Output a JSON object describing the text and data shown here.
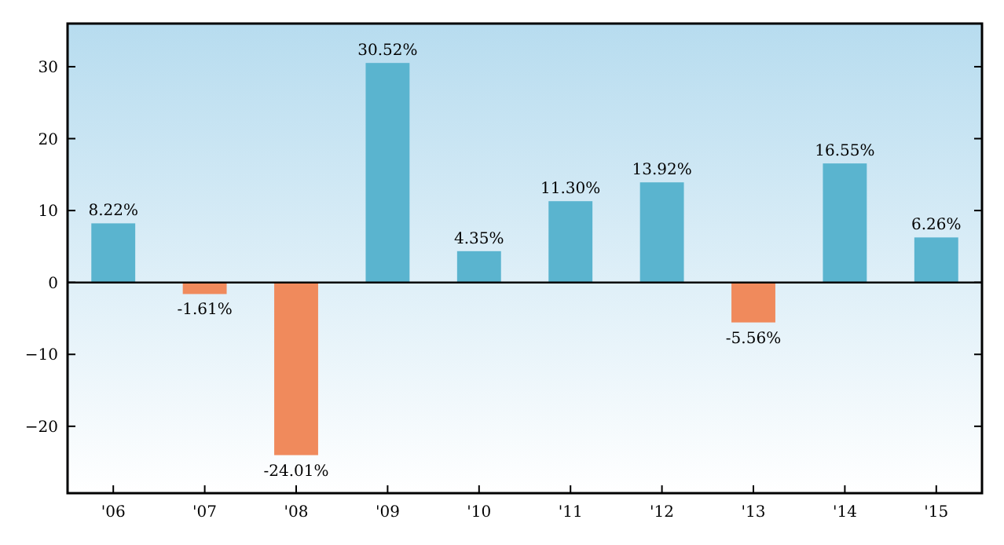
{
  "chart_data": {
    "type": "bar",
    "categories": [
      "'06",
      "'07",
      "'08",
      "'09",
      "'10",
      "'11",
      "'12",
      "'13",
      "'14",
      "'15"
    ],
    "values": [
      8.22,
      -1.61,
      -24.01,
      30.52,
      4.35,
      11.3,
      13.92,
      -5.56,
      16.55,
      6.26
    ],
    "colors": [
      "#5ab4cf",
      "#f08a5c",
      "#f08a5c",
      "#5ab4cf",
      "#5ab4cf",
      "#5ab4cf",
      "#5ab4cf",
      "#f08a5c",
      "#5ab4cf",
      "#5ab4cf"
    ],
    "value_labels": [
      "8.22%",
      "-1.61%",
      "-24.01%",
      "30.52%",
      "4.35%",
      "11.30%",
      "13.92%",
      "-5.56%",
      "16.55%",
      "6.26%"
    ],
    "ylim": [
      -29.3,
      36
    ],
    "yticks": [
      {
        "value": -20,
        "label": "−20"
      },
      {
        "value": -10,
        "label": "−10"
      },
      0,
      10,
      20,
      30
    ],
    "ref_lines": [
      {
        "axis": "y",
        "value": 0,
        "color": "#000000"
      }
    ],
    "grid": false
  }
}
